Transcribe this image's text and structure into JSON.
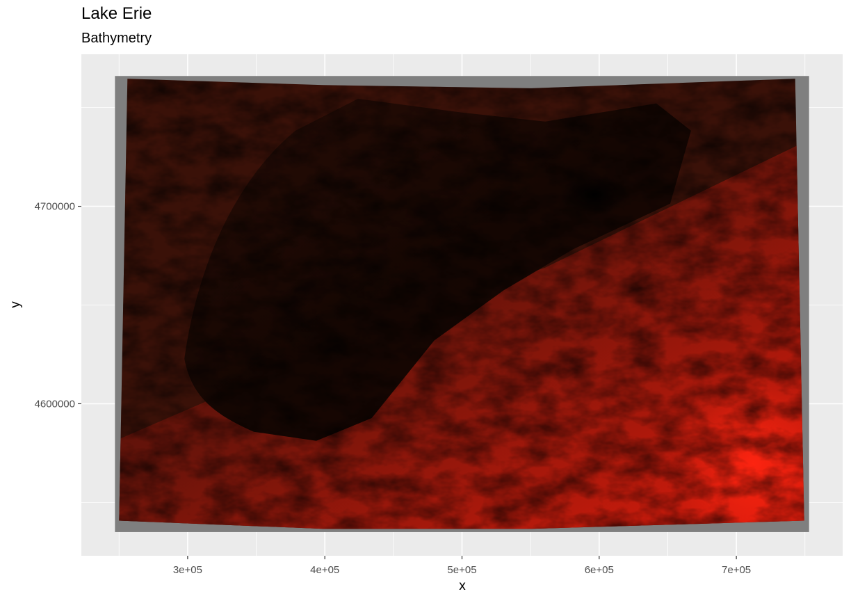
{
  "title": "Lake Erie",
  "subtitle": "Bathymetry",
  "chart_data": {
    "type": "heatmap",
    "title": "Lake Erie",
    "subtitle": "Bathymetry",
    "xlabel": "x",
    "ylabel": "y",
    "xlim": [
      222500,
      777500
    ],
    "ylim": [
      4523000,
      4777000
    ],
    "x_breaks": [
      300000,
      400000,
      500000,
      600000,
      700000
    ],
    "x_tick_labels": [
      "3e+05",
      "4e+05",
      "5e+05",
      "6e+05",
      "7e+05"
    ],
    "y_breaks": [
      4600000,
      4700000
    ],
    "y_tick_labels": [
      "4600000",
      "4700000"
    ],
    "grid": true,
    "panel_background": "#ebebeb",
    "raster_extent": {
      "x": [
        247000,
        753000
      ],
      "y": [
        4535000,
        4766000
      ]
    },
    "na_color": "#7f7f7f",
    "color_scale": {
      "low": "#000000",
      "high": "#ff1a00"
    },
    "features": {
      "lake_basin_color": "#180903",
      "north_shore_color": "#3a1108",
      "south_shore_color": "#9a1a0c",
      "bright_highland_color": "#e81c0c",
      "deepest_point_color": "#000000"
    }
  }
}
